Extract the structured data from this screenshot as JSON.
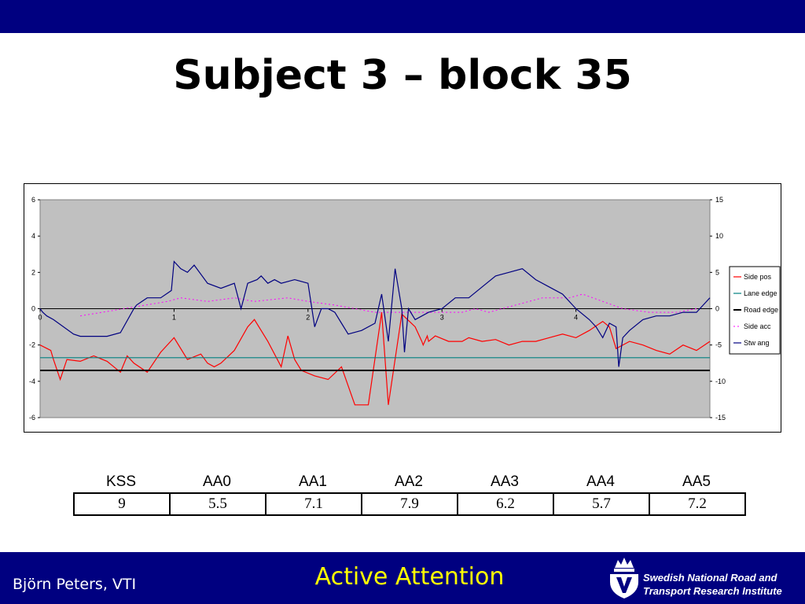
{
  "slide": {
    "title": "Subject 3 – block 35",
    "footer_author": "Björn Peters, VTI",
    "footer_center": "Active Attention",
    "institute_line1": "Swedish National Road and",
    "institute_line2": "Transport Research Institute"
  },
  "colors": {
    "side_pos": "#ff0000",
    "lane_edge": "#008080",
    "road_edge": "#000000",
    "side_acc": "#ff00ff",
    "stw_ang": "#000080",
    "plot_bg": "#c0c0c0",
    "bars": "#000080",
    "center_text": "#ffff00"
  },
  "chart_data": {
    "type": "line",
    "x_ticks": [
      "0",
      "1",
      "2",
      "3",
      "4"
    ],
    "xlim": [
      0,
      5
    ],
    "ylim_left": [
      -6,
      6
    ],
    "yticks_left": [
      "6",
      "4",
      "2",
      "0",
      "-2",
      "-4",
      "-6"
    ],
    "ylim_right": [
      -15,
      15
    ],
    "yticks_right": [
      "15",
      "10",
      "5",
      "0",
      "-5",
      "-10",
      "-15"
    ],
    "legend_position": "right",
    "grid": "zero line only",
    "legend": [
      "Side pos",
      "Lane edge",
      "Road edge",
      "Side acc",
      "Stw ang"
    ],
    "series": [
      {
        "name": "Side pos",
        "axis": "left",
        "x": [
          0,
          0.08,
          0.1,
          0.15,
          0.2,
          0.3,
          0.4,
          0.5,
          0.6,
          0.65,
          0.7,
          0.8,
          0.9,
          1.0,
          1.1,
          1.2,
          1.25,
          1.3,
          1.35,
          1.45,
          1.55,
          1.6,
          1.7,
          1.8,
          1.85,
          1.9,
          1.95,
          2.05,
          2.15,
          2.25,
          2.35,
          2.45,
          2.55,
          2.6,
          2.7,
          2.8,
          2.85,
          2.86,
          2.89,
          2.9,
          2.95,
          3.05,
          3.15,
          3.2,
          3.3,
          3.4,
          3.5,
          3.6,
          3.7,
          3.8,
          3.9,
          4.0,
          4.1,
          4.2,
          4.25,
          4.3,
          4.4,
          4.5,
          4.6,
          4.7,
          4.8,
          4.9,
          5.0
        ],
        "y": [
          -2,
          -2.3,
          -2.8,
          -3.9,
          -2.8,
          -2.9,
          -2.6,
          -2.9,
          -3.5,
          -2.6,
          -3.0,
          -3.5,
          -2.4,
          -1.6,
          -2.8,
          -2.5,
          -3.0,
          -3.2,
          -3.0,
          -2.3,
          -1.0,
          -0.6,
          -1.8,
          -3.2,
          -1.5,
          -2.8,
          -3.4,
          -3.7,
          -3.9,
          -3.2,
          -5.3,
          -5.3,
          -0.2,
          -5.3,
          -0.3,
          -1.0,
          -1.8,
          -2.0,
          -1.5,
          -1.8,
          -1.5,
          -1.8,
          -1.8,
          -1.6,
          -1.8,
          -1.7,
          -2.0,
          -1.8,
          -1.8,
          -1.6,
          -1.4,
          -1.6,
          -1.2,
          -0.7,
          -1.0,
          -2.2,
          -1.8,
          -2.0,
          -2.3,
          -2.5,
          -2.0,
          -2.3,
          -1.8
        ]
      },
      {
        "name": "Lane edge",
        "axis": "left",
        "x": [
          0,
          5
        ],
        "y": [
          -2.7,
          -2.7
        ]
      },
      {
        "name": "Road edge",
        "axis": "left",
        "x": [
          0,
          5
        ],
        "y": [
          -3.4,
          -3.4
        ]
      },
      {
        "name": "Side acc",
        "axis": "right",
        "x": [
          0.3,
          0.95,
          1.05,
          1.25,
          1.45,
          1.6,
          1.85,
          2.0,
          2.2,
          2.5,
          3.15,
          3.25,
          3.35,
          3.75,
          3.85,
          3.95,
          4.05,
          4.35,
          4.55,
          4.75,
          4.9
        ],
        "y": [
          -1,
          1,
          1.5,
          1,
          1.5,
          1,
          1.5,
          1,
          0.5,
          -0.5,
          -0.5,
          0,
          -0.5,
          1.5,
          1.5,
          1.5,
          2,
          0,
          -0.5,
          -0.5,
          0
        ]
      },
      {
        "name": "Stw ang",
        "axis": "right",
        "x": [
          0,
          0.02,
          0.05,
          0.1,
          0.25,
          0.3,
          0.5,
          0.6,
          0.7,
          0.72,
          0.8,
          0.9,
          0.98,
          1.0,
          1.05,
          1.1,
          1.15,
          1.25,
          1.35,
          1.45,
          1.5,
          1.55,
          1.62,
          1.65,
          1.7,
          1.75,
          1.8,
          1.9,
          2.0,
          2.05,
          2.1,
          2.15,
          2.2,
          2.25,
          2.3,
          2.4,
          2.5,
          2.55,
          2.6,
          2.65,
          2.7,
          2.72,
          2.75,
          2.8,
          2.9,
          3.0,
          3.1,
          3.2,
          3.3,
          3.4,
          3.5,
          3.6,
          3.7,
          3.8,
          3.9,
          4.0,
          4.1,
          4.15,
          4.2,
          4.25,
          4.3,
          4.32,
          4.35,
          4.4,
          4.5,
          4.6,
          4.7,
          4.8,
          4.9,
          4.95,
          5.0
        ],
        "y": [
          0,
          -0.5,
          -1,
          -1.5,
          -3.5,
          -3.8,
          -3.8,
          -3.3,
          0,
          0.5,
          1.5,
          1.5,
          2.5,
          6.5,
          5.5,
          5.0,
          6.0,
          3.5,
          2.8,
          3.5,
          0,
          3.5,
          4.0,
          4.5,
          3.5,
          4.0,
          3.5,
          4.0,
          3.5,
          -2.5,
          0,
          0,
          -0.5,
          -2,
          -3.5,
          -3,
          -2,
          2,
          -4.5,
          5.5,
          0,
          -6,
          0,
          -1.5,
          -0.5,
          0,
          1.5,
          1.5,
          3,
          4.5,
          5,
          5.5,
          4,
          3,
          2,
          0,
          -1.5,
          -2.5,
          -4,
          -2,
          -2.5,
          -8,
          -4,
          -3,
          -1.5,
          -1,
          -1,
          -0.5,
          -0.5,
          0.5,
          1.5
        ]
      }
    ]
  },
  "table": {
    "headers": [
      "KSS",
      "AA0",
      "AA1",
      "AA2",
      "AA3",
      "AA4",
      "AA5"
    ],
    "values": [
      "9",
      "5.5",
      "7.1",
      "7.9",
      "6.2",
      "5.7",
      "7.2"
    ]
  }
}
